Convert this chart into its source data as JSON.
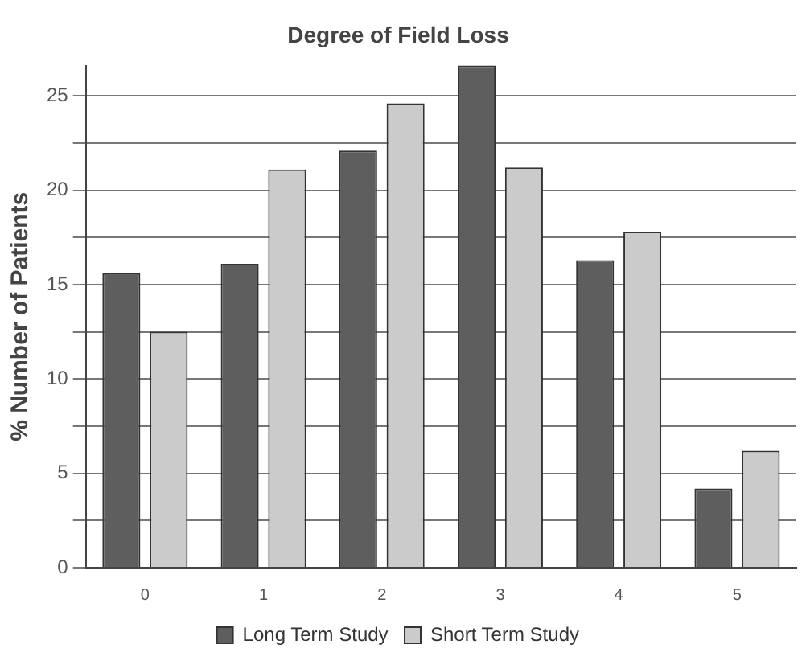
{
  "chart_data": {
    "type": "bar",
    "title": "Degree of Field Loss",
    "ylabel": "% Number of Patients",
    "categories": [
      "0",
      "1",
      "2",
      "3",
      "4",
      "5"
    ],
    "series": [
      {
        "name": "Long Term Study",
        "color": "#5e5e5e",
        "values": [
          15.6,
          16.1,
          22.1,
          26.6,
          16.3,
          4.2
        ]
      },
      {
        "name": "Short Term Study",
        "color": "#cbcbcb",
        "values": [
          12.5,
          21.1,
          24.6,
          21.2,
          17.8,
          6.2
        ]
      }
    ],
    "ylim": [
      0,
      26.6
    ],
    "yticks": [
      0,
      {
        "value": 2.5,
        "label": null
      },
      5,
      {
        "value": 7.5,
        "label": null
      },
      10,
      {
        "value": 12.5,
        "label": null
      },
      15,
      {
        "value": 17.5,
        "label": null
      },
      20,
      {
        "value": 22.5,
        "label": null
      },
      25
    ],
    "grid": "y",
    "legend": "bottom"
  }
}
